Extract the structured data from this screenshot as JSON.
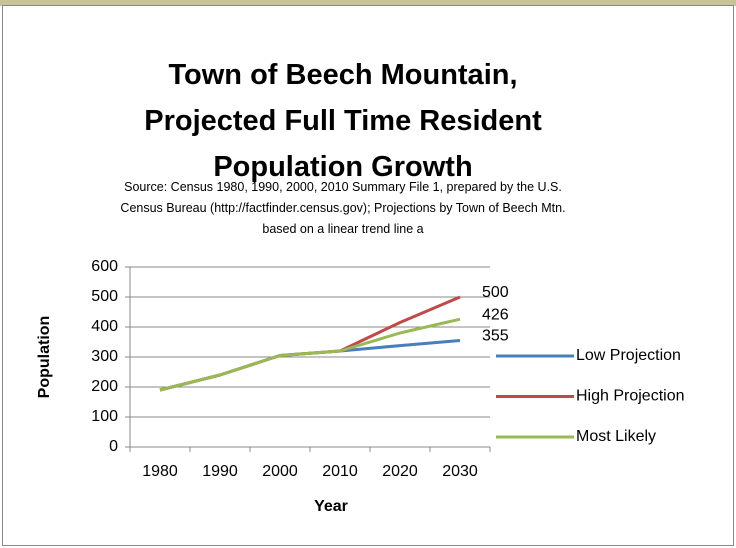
{
  "chart_data": {
    "type": "line",
    "title": "Town of Beech Mountain,\nProjected Full Time Resident\nPopulation Growth",
    "subtitle": "Source: Census 1980, 1990, 2000, 2010 Summary File 1, prepared by the U.S. Census Bureau (http://factfinder.census.gov); Projections by Town of Beech Mtn. based on a linear trend line a",
    "x_label": "Year",
    "y_label": "Population",
    "categories": [
      "1980",
      "1990",
      "2000",
      "2010",
      "2020",
      "2030"
    ],
    "series": [
      {
        "name": "Low Projection",
        "color": "#4a7ebb",
        "values": [
          190,
          240,
          305,
          320,
          338,
          355
        ]
      },
      {
        "name": "High Projection",
        "color": "#be4b48",
        "values": [
          190,
          240,
          305,
          320,
          415,
          500
        ]
      },
      {
        "name": "Most Likely",
        "color": "#98b954",
        "values": [
          190,
          240,
          305,
          320,
          380,
          426
        ]
      }
    ],
    "ylim": [
      0,
      600
    ],
    "yticks": [
      0,
      100,
      200,
      300,
      400,
      500,
      600
    ],
    "grid": true,
    "legend": "right"
  }
}
